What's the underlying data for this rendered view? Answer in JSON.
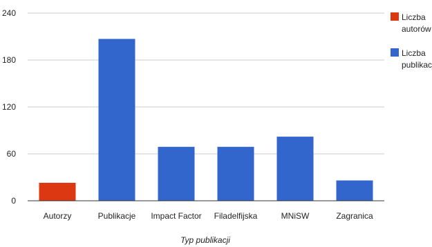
{
  "chart_data": {
    "type": "bar",
    "categories": [
      "Autorzy",
      "Publikacje",
      "Impact Factor",
      "Filadelfijska",
      "MNiSW",
      "Zagranica"
    ],
    "values": [
      23,
      207,
      69,
      69,
      82,
      26
    ],
    "series_index": [
      0,
      1,
      1,
      1,
      1,
      1
    ],
    "series": [
      {
        "name_lines": [
          "Liczba",
          "autorów"
        ],
        "color": "#dc3912"
      },
      {
        "name_lines": [
          "Liczba",
          "publikacji"
        ],
        "color": "#3366cc"
      }
    ],
    "xlabel": "Typ publikacji",
    "ylabel": "",
    "ylim": [
      0,
      240
    ],
    "yticks": [
      0,
      60,
      120,
      180,
      240
    ],
    "grid": true,
    "legend_position": "right"
  }
}
